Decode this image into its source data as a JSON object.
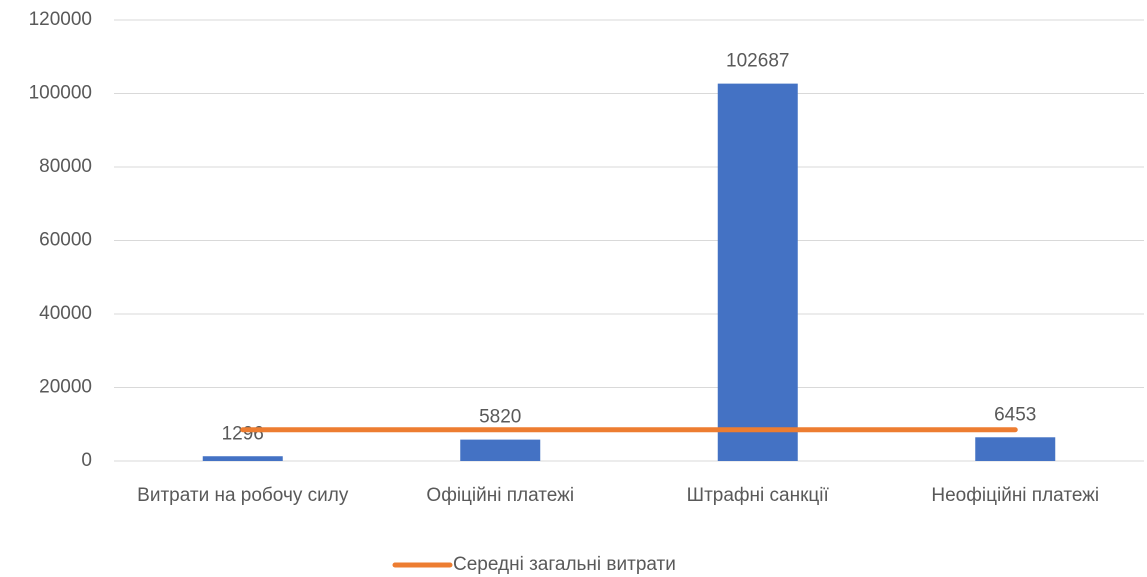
{
  "chart_data": {
    "type": "bar",
    "categories": [
      "Витрати на робочу силу",
      "Офіційні платежі",
      "Штрафні санкції",
      "Неофіційні платежі"
    ],
    "values": [
      1296,
      5820,
      102687,
      6453
    ],
    "color": "#4472c4",
    "series": [
      {
        "name": "Середні загальні витрати",
        "color": "#ed7d31",
        "values": [
          8500,
          8500,
          8500,
          8500
        ]
      }
    ],
    "ylim": [
      0,
      120000
    ],
    "yticks": [
      0,
      20000,
      40000,
      60000,
      80000,
      100000,
      120000
    ],
    "grid": true,
    "legend": "bottom"
  }
}
